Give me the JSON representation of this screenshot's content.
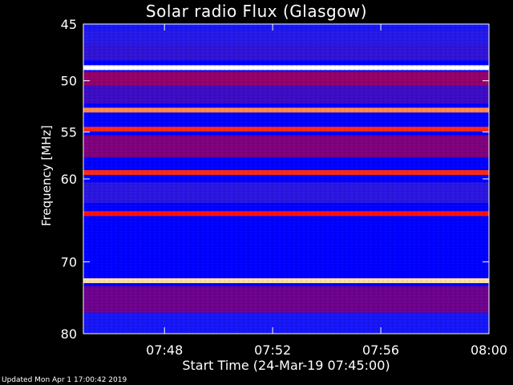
{
  "title": "Solar radio Flux (Glasgow)",
  "footer": "Updated Mon Apr  1 17:00:42 2019",
  "chart_data": {
    "type": "heatmap",
    "title": "Solar radio Flux (Glasgow)",
    "xlabel": "Start Time (24-Mar-19 07:45:00)",
    "ylabel": "Frequency [MHz]",
    "xlim": [
      "07:45:00",
      "08:00:00"
    ],
    "ylim": [
      80,
      45
    ],
    "y_scale": "log",
    "x_ticks": [
      "07:48",
      "07:52",
      "07:56",
      "08:00"
    ],
    "y_ticks": [
      45,
      50,
      55,
      60,
      70,
      80
    ],
    "colormap": [
      "#0000ff",
      "#2828f0",
      "#5a0aa0",
      "#aa0050",
      "#ff0000",
      "#ffcc66",
      "#ffffff"
    ],
    "spectrum": [
      {
        "f": 45.0,
        "level": 0.12
      },
      {
        "f": 46.0,
        "level": 0.2
      },
      {
        "f": 47.5,
        "level": 0.25
      },
      {
        "f": 48.8,
        "level": 1.0
      },
      {
        "f": 49.5,
        "level": 0.55
      },
      {
        "f": 51.5,
        "level": 0.3
      },
      {
        "f": 52.8,
        "level": 0.78
      },
      {
        "f": 54.7,
        "level": 0.7
      },
      {
        "f": 56.0,
        "level": 0.5
      },
      {
        "f": 59.3,
        "level": 0.7
      },
      {
        "f": 61.5,
        "level": 0.22
      },
      {
        "f": 64.0,
        "level": 0.68
      },
      {
        "f": 72.5,
        "level": 0.9
      },
      {
        "f": 74.0,
        "level": 0.45
      },
      {
        "f": 80.0,
        "level": 0.12
      }
    ]
  }
}
